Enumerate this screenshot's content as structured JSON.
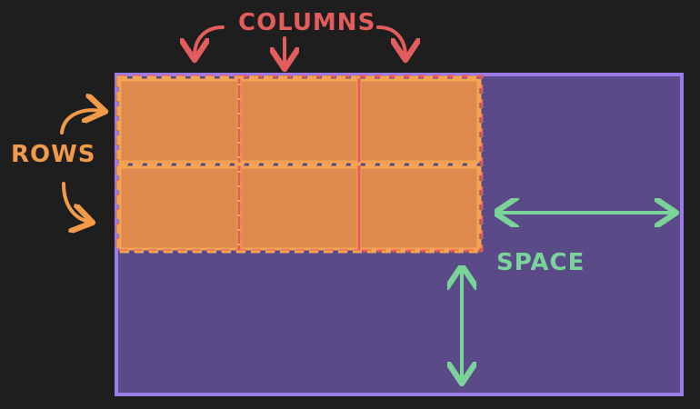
{
  "labels": {
    "columns": "COLUMNS",
    "rows": "ROWS",
    "space": "SPACE"
  },
  "grid": {
    "rows": 2,
    "columns": 3
  },
  "colors": {
    "background": "#1e1e1e",
    "container_fill": "#5b4a88",
    "container_border": "#9b7be8",
    "cell_fill": "#de8a4e",
    "cell_border": "#f3a352",
    "columns_color": "#e35d5d",
    "rows_color": "#f09a4a",
    "space_color": "#7ad49a"
  }
}
